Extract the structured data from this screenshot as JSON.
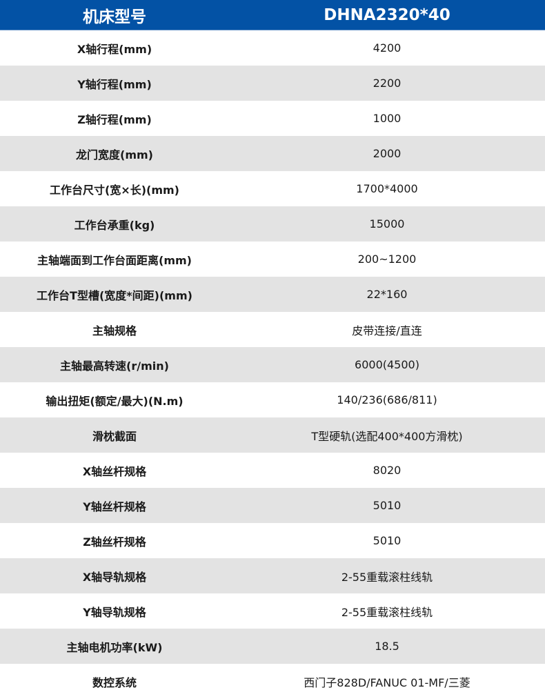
{
  "header": {
    "label": "机床型号",
    "value": "DHNA2320*40"
  },
  "colors": {
    "header_bg": "#0352a5",
    "alt_row_bg": "#e3e3e3"
  },
  "rows": [
    {
      "label": "X轴行程(mm)",
      "value": "4200"
    },
    {
      "label": "Y轴行程(mm)",
      "value": "2200"
    },
    {
      "label": "Z轴行程(mm)",
      "value": "1000"
    },
    {
      "label": "龙门宽度(mm)",
      "value": "2000"
    },
    {
      "label": "工作台尺寸(宽×长)(mm)",
      "value": "1700*4000"
    },
    {
      "label": "工作台承重(kg)",
      "value": "15000"
    },
    {
      "label": "主轴端面到工作台面距离(mm)",
      "value": "200~1200"
    },
    {
      "label": "工作台T型槽(宽度*间距)(mm)",
      "value": "22*160"
    },
    {
      "label": "主轴规格",
      "value": "皮带连接/直连"
    },
    {
      "label": "主轴最高转速(r/min)",
      "value": "6000(4500)"
    },
    {
      "label": "输出扭矩(额定/最大)(N.m)",
      "value": "140/236(686/811)"
    },
    {
      "label": "滑枕截面",
      "value": "T型硬轨(选配400*400方滑枕)"
    },
    {
      "label": "X轴丝杆规格",
      "value": "8020"
    },
    {
      "label": "Y轴丝杆规格",
      "value": "5010"
    },
    {
      "label": "Z轴丝杆规格",
      "value": "5010"
    },
    {
      "label": "X轴导轨规格",
      "value": "2-55重载滚柱线轨"
    },
    {
      "label": "Y轴导轨规格",
      "value": "2-55重载滚柱线轨"
    },
    {
      "label": "主轴电机功率(kW)",
      "value": "18.5"
    },
    {
      "label": "数控系统",
      "value": "西门子828D/FANUC 01-MF/三菱"
    }
  ]
}
